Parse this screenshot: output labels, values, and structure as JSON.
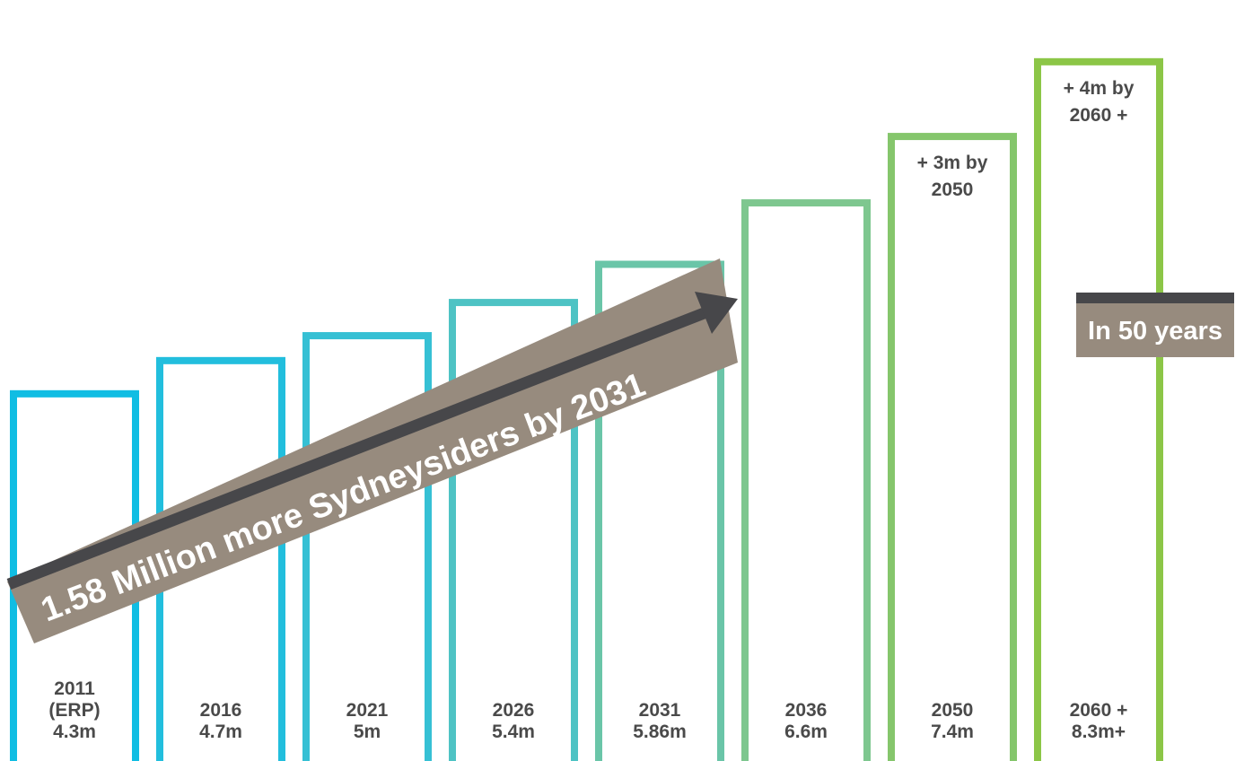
{
  "chart_data": {
    "type": "bar",
    "categories": [
      "2011 (ERP)",
      "2016",
      "2021",
      "2026",
      "2031",
      "2036",
      "2050",
      "2060 +"
    ],
    "values": [
      4.3,
      4.7,
      5.0,
      5.4,
      5.86,
      6.6,
      7.4,
      8.3
    ],
    "unit": "m",
    "bar_labels": [
      [
        "2011",
        "(ERP)",
        "4.3m"
      ],
      [
        "2016",
        "4.7m"
      ],
      [
        "2021",
        "5m"
      ],
      [
        "2026",
        "5.4m"
      ],
      [
        "2031",
        "5.86m"
      ],
      [
        "2036",
        "6.6m"
      ],
      [
        "2050",
        "7.4m"
      ],
      [
        "2060 +",
        "8.3m+"
      ]
    ],
    "top_annotations": [
      null,
      null,
      null,
      null,
      null,
      null,
      [
        "+ 3m by",
        "2050"
      ],
      [
        "+ 4m by",
        "2060 +"
      ]
    ],
    "colors": [
      "#10bde3",
      "#22bedd",
      "#36c0d4",
      "#4ec3c4",
      "#6ac5a8",
      "#7ec78f",
      "#85c66c",
      "#8cc647"
    ],
    "bar_style": "outline",
    "growth_arrow": {
      "text": "1.58 Million more Sydneysiders by 2031",
      "color": "#47474a",
      "box_color": "#978b7e"
    },
    "callout": {
      "text": "In 50 years",
      "box_color": "#978b7e",
      "line_color": "#47474a"
    },
    "grid": false,
    "axes": false,
    "legend": false
  }
}
